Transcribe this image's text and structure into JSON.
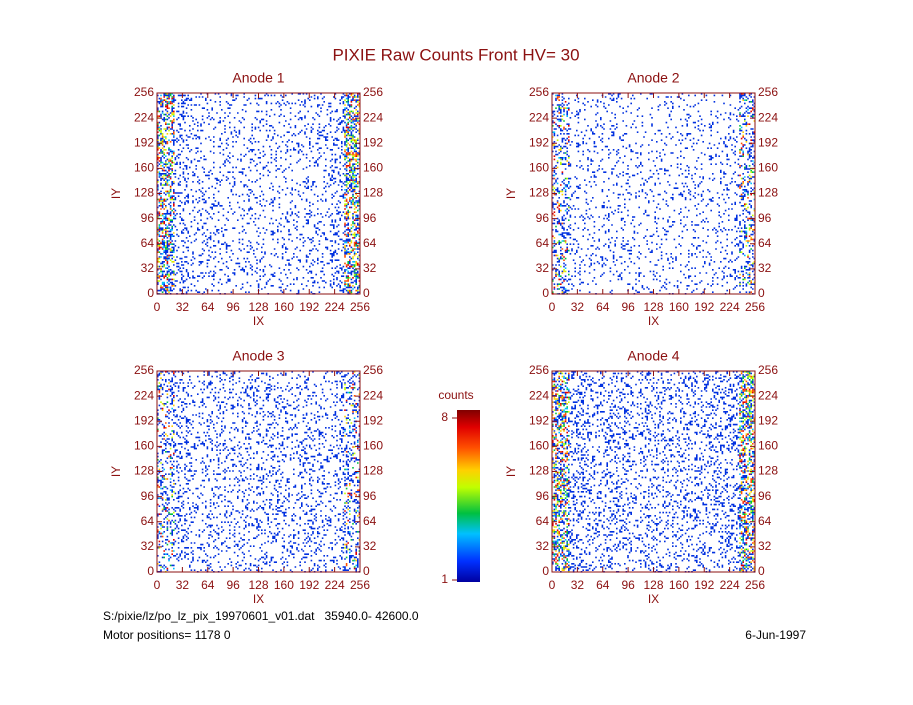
{
  "title": "PIXIE Raw Counts Front HV= 30",
  "chart_data": [
    {
      "type": "heatmap",
      "title": "Anode 1",
      "xlabel": "IX",
      "ylabel": "IY",
      "xlim": [
        0,
        256
      ],
      "ylim": [
        0,
        256
      ],
      "xticks": [
        0,
        32,
        64,
        96,
        128,
        160,
        192,
        224,
        256
      ],
      "yticks": [
        0,
        32,
        64,
        96,
        128,
        160,
        192,
        224,
        256
      ]
    },
    {
      "type": "heatmap",
      "title": "Anode 2",
      "xlabel": "IX",
      "ylabel": "IY",
      "xlim": [
        0,
        256
      ],
      "ylim": [
        0,
        256
      ],
      "xticks": [
        0,
        32,
        64,
        96,
        128,
        160,
        192,
        224,
        256
      ],
      "yticks": [
        0,
        32,
        64,
        96,
        128,
        160,
        192,
        224,
        256
      ]
    },
    {
      "type": "heatmap",
      "title": "Anode 3",
      "xlabel": "IX",
      "ylabel": "IY",
      "xlim": [
        0,
        256
      ],
      "ylim": [
        0,
        256
      ],
      "xticks": [
        0,
        32,
        64,
        96,
        128,
        160,
        192,
        224,
        256
      ],
      "yticks": [
        0,
        32,
        64,
        96,
        128,
        160,
        192,
        224,
        256
      ]
    },
    {
      "type": "heatmap",
      "title": "Anode 4",
      "xlabel": "IX",
      "ylabel": "IY",
      "xlim": [
        0,
        256
      ],
      "ylim": [
        0,
        256
      ],
      "xticks": [
        0,
        32,
        64,
        96,
        128,
        160,
        192,
        224,
        256
      ],
      "yticks": [
        0,
        32,
        64,
        96,
        128,
        160,
        192,
        224,
        256
      ]
    }
  ],
  "colorbar": {
    "label": "counts",
    "clim": [
      1,
      8
    ]
  },
  "footer": {
    "file": "S:/pixie/lz/po_lz_pix_19970601_v01.dat   35940.0- 42600.0",
    "motor": "Motor positions= 1178 0",
    "date": "6-Jun-1997"
  }
}
